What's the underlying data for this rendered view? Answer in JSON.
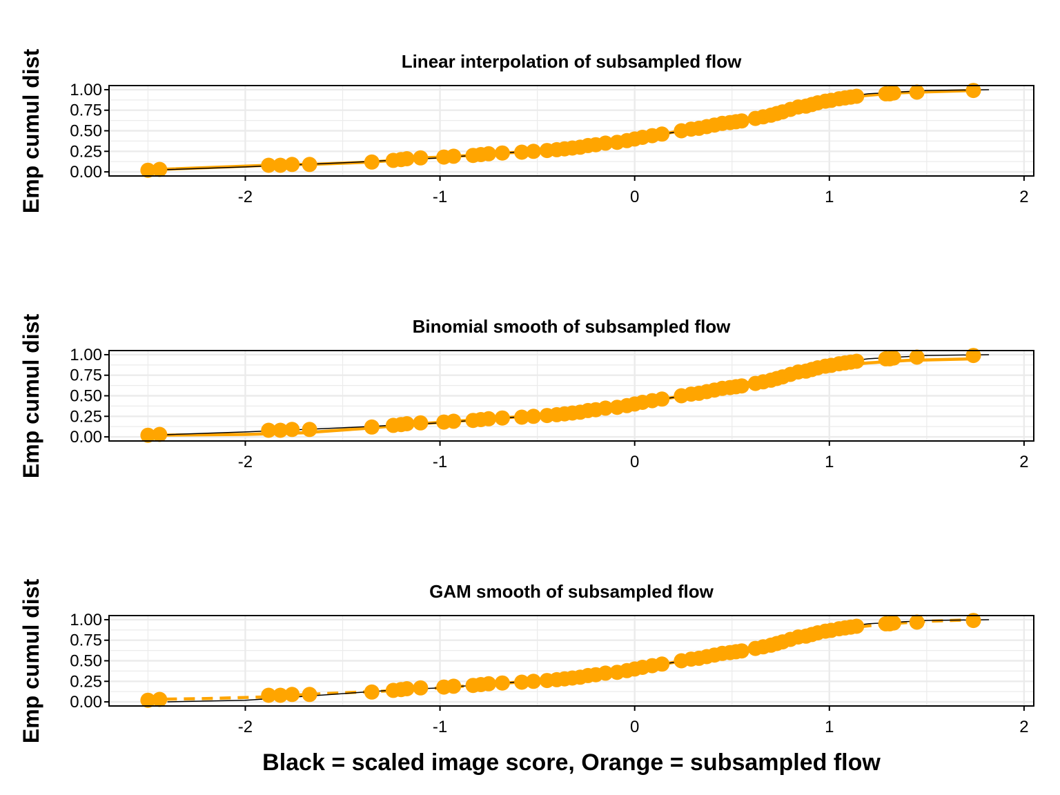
{
  "figure": {
    "x_label": "Black = scaled image score, Orange = subsampled flow",
    "y_label": "Emp cumul dist"
  },
  "colors": {
    "orange": "#FFA500",
    "black": "#000000",
    "grid": "#EBEBEB"
  },
  "chart_data": [
    {
      "type": "line",
      "title": "Linear interpolation of subsampled flow",
      "ylabel": "Emp cumul dist",
      "xlim": [
        -2.7,
        2.05
      ],
      "ylim": [
        -0.05,
        1.05
      ],
      "x_ticks": [
        "-2",
        "-1",
        "0",
        "1",
        "2"
      ],
      "y_ticks": [
        "0.00",
        "0.25",
        "0.50",
        "0.75",
        "1.00"
      ],
      "grid": true,
      "orange_line_style": "solid",
      "series": [
        {
          "role": "black",
          "x": [
            -2.5,
            -2.0,
            -1.5,
            -1.0,
            -0.5,
            -0.1,
            0.0,
            0.2,
            0.4,
            0.6,
            0.8,
            1.0,
            1.2,
            1.5,
            1.82
          ],
          "y": [
            0.02,
            0.06,
            0.11,
            0.17,
            0.26,
            0.36,
            0.41,
            0.48,
            0.56,
            0.66,
            0.79,
            0.89,
            0.95,
            0.99,
            1.0
          ]
        },
        {
          "role": "orange",
          "x": [
            -2.5,
            -2.44,
            -1.88,
            -1.82,
            -1.76,
            -1.67,
            -1.35,
            -1.24,
            -1.2,
            -1.17,
            -1.1,
            -0.98,
            -0.93,
            -0.83,
            -0.79,
            -0.75,
            -0.68,
            -0.58,
            -0.52,
            -0.45,
            -0.4,
            -0.36,
            -0.32,
            -0.28,
            -0.24,
            -0.2,
            -0.15,
            -0.09,
            -0.04,
            0.0,
            0.04,
            0.09,
            0.14,
            0.24,
            0.29,
            0.33,
            0.37,
            0.41,
            0.45,
            0.49,
            0.52,
            0.55,
            0.62,
            0.66,
            0.7,
            0.73,
            0.76,
            0.8,
            0.84,
            0.88,
            0.91,
            0.94,
            0.98,
            1.01,
            1.05,
            1.08,
            1.11,
            1.14,
            1.29,
            1.31,
            1.33,
            1.45,
            1.74
          ],
          "y": [
            0.02,
            0.03,
            0.08,
            0.08,
            0.09,
            0.09,
            0.12,
            0.14,
            0.15,
            0.16,
            0.17,
            0.18,
            0.19,
            0.2,
            0.21,
            0.22,
            0.23,
            0.24,
            0.25,
            0.26,
            0.27,
            0.28,
            0.29,
            0.3,
            0.32,
            0.33,
            0.35,
            0.36,
            0.38,
            0.4,
            0.42,
            0.44,
            0.46,
            0.5,
            0.52,
            0.53,
            0.55,
            0.57,
            0.59,
            0.6,
            0.61,
            0.62,
            0.65,
            0.67,
            0.69,
            0.71,
            0.73,
            0.76,
            0.79,
            0.8,
            0.82,
            0.84,
            0.86,
            0.87,
            0.89,
            0.9,
            0.91,
            0.92,
            0.95,
            0.95,
            0.96,
            0.97,
            0.99
          ]
        }
      ]
    },
    {
      "type": "line",
      "title": "Binomial smooth of subsampled flow",
      "ylabel": "Emp cumul dist",
      "xlim": [
        -2.7,
        2.05
      ],
      "ylim": [
        -0.05,
        1.05
      ],
      "x_ticks": [
        "-2",
        "-1",
        "0",
        "1",
        "2"
      ],
      "y_ticks": [
        "0.00",
        "0.25",
        "0.50",
        "0.75",
        "1.00"
      ],
      "grid": true,
      "orange_line_style": "solid",
      "series": [
        {
          "role": "black",
          "x": [
            -2.5,
            -2.0,
            -1.5,
            -1.0,
            -0.5,
            -0.1,
            0.0,
            0.2,
            0.4,
            0.6,
            0.8,
            1.0,
            1.2,
            1.5,
            1.82
          ],
          "y": [
            0.02,
            0.06,
            0.11,
            0.17,
            0.26,
            0.36,
            0.41,
            0.48,
            0.56,
            0.66,
            0.79,
            0.89,
            0.95,
            0.99,
            1.0
          ]
        },
        {
          "role": "orange_line",
          "x": [
            -2.5,
            -2.0,
            -1.7,
            -1.4,
            -1.1,
            -0.8,
            -0.5,
            -0.2,
            0.0,
            0.2,
            0.4,
            0.6,
            0.8,
            1.0,
            1.2,
            1.4,
            1.74
          ],
          "y": [
            0.02,
            0.03,
            0.05,
            0.1,
            0.16,
            0.21,
            0.26,
            0.34,
            0.41,
            0.48,
            0.57,
            0.67,
            0.76,
            0.86,
            0.9,
            0.93,
            0.95
          ]
        },
        {
          "role": "orange_points",
          "x": [
            -2.5,
            -2.44,
            -1.88,
            -1.82,
            -1.76,
            -1.67,
            -1.35,
            -1.24,
            -1.2,
            -1.17,
            -1.1,
            -0.98,
            -0.93,
            -0.83,
            -0.79,
            -0.75,
            -0.68,
            -0.58,
            -0.52,
            -0.45,
            -0.4,
            -0.36,
            -0.32,
            -0.28,
            -0.24,
            -0.2,
            -0.15,
            -0.09,
            -0.04,
            0.0,
            0.04,
            0.09,
            0.14,
            0.24,
            0.29,
            0.33,
            0.37,
            0.41,
            0.45,
            0.49,
            0.52,
            0.55,
            0.62,
            0.66,
            0.7,
            0.73,
            0.76,
            0.8,
            0.84,
            0.88,
            0.91,
            0.94,
            0.98,
            1.01,
            1.05,
            1.08,
            1.11,
            1.14,
            1.29,
            1.31,
            1.33,
            1.45,
            1.74
          ],
          "y": [
            0.02,
            0.03,
            0.08,
            0.08,
            0.09,
            0.09,
            0.12,
            0.14,
            0.15,
            0.16,
            0.17,
            0.18,
            0.19,
            0.2,
            0.21,
            0.22,
            0.23,
            0.24,
            0.25,
            0.26,
            0.27,
            0.28,
            0.29,
            0.3,
            0.32,
            0.33,
            0.35,
            0.36,
            0.38,
            0.4,
            0.42,
            0.44,
            0.46,
            0.5,
            0.52,
            0.53,
            0.55,
            0.57,
            0.59,
            0.6,
            0.61,
            0.62,
            0.65,
            0.67,
            0.69,
            0.71,
            0.73,
            0.76,
            0.79,
            0.8,
            0.82,
            0.84,
            0.86,
            0.87,
            0.89,
            0.9,
            0.91,
            0.92,
            0.95,
            0.95,
            0.96,
            0.97,
            0.99
          ]
        }
      ]
    },
    {
      "type": "line",
      "title": "GAM smooth of subsampled flow",
      "ylabel": "Emp cumul dist",
      "xlim": [
        -2.7,
        2.05
      ],
      "ylim": [
        -0.05,
        1.05
      ],
      "x_ticks": [
        "-2",
        "-1",
        "0",
        "1",
        "2"
      ],
      "y_ticks": [
        "0.00",
        "0.25",
        "0.50",
        "0.75",
        "1.00"
      ],
      "grid": true,
      "orange_line_style": "dashed",
      "series": [
        {
          "role": "black",
          "x": [
            -2.4,
            -2.0,
            -1.8,
            -1.5,
            -1.2,
            -1.0,
            -0.5,
            -0.1,
            0.0,
            0.2,
            0.4,
            0.6,
            0.8,
            1.0,
            1.2,
            1.5,
            1.82
          ],
          "y": [
            0.0,
            0.02,
            0.05,
            0.1,
            0.15,
            0.17,
            0.26,
            0.36,
            0.41,
            0.48,
            0.56,
            0.66,
            0.79,
            0.89,
            0.95,
            0.99,
            1.0
          ]
        },
        {
          "role": "orange_line",
          "x": [
            -2.5,
            -2.2,
            -1.9,
            -1.6,
            -1.3,
            -1.0,
            -0.7,
            -0.4,
            -0.1,
            0.1,
            0.3,
            0.5,
            0.7,
            0.9,
            1.1,
            1.3,
            1.5,
            1.74
          ],
          "y": [
            0.03,
            0.04,
            0.06,
            0.1,
            0.13,
            0.17,
            0.22,
            0.28,
            0.37,
            0.44,
            0.52,
            0.61,
            0.71,
            0.82,
            0.9,
            0.95,
            0.98,
            1.0
          ]
        },
        {
          "role": "orange_points",
          "x": [
            -2.5,
            -2.44,
            -1.88,
            -1.82,
            -1.76,
            -1.67,
            -1.35,
            -1.24,
            -1.2,
            -1.17,
            -1.1,
            -0.98,
            -0.93,
            -0.83,
            -0.79,
            -0.75,
            -0.68,
            -0.58,
            -0.52,
            -0.45,
            -0.4,
            -0.36,
            -0.32,
            -0.28,
            -0.24,
            -0.2,
            -0.15,
            -0.09,
            -0.04,
            0.0,
            0.04,
            0.09,
            0.14,
            0.24,
            0.29,
            0.33,
            0.37,
            0.41,
            0.45,
            0.49,
            0.52,
            0.55,
            0.62,
            0.66,
            0.7,
            0.73,
            0.76,
            0.8,
            0.84,
            0.88,
            0.91,
            0.94,
            0.98,
            1.01,
            1.05,
            1.08,
            1.11,
            1.14,
            1.29,
            1.31,
            1.33,
            1.45,
            1.74
          ],
          "y": [
            0.02,
            0.03,
            0.08,
            0.08,
            0.09,
            0.09,
            0.12,
            0.14,
            0.15,
            0.16,
            0.17,
            0.18,
            0.19,
            0.2,
            0.21,
            0.22,
            0.23,
            0.24,
            0.25,
            0.26,
            0.27,
            0.28,
            0.29,
            0.3,
            0.32,
            0.33,
            0.35,
            0.36,
            0.38,
            0.4,
            0.42,
            0.44,
            0.46,
            0.5,
            0.52,
            0.53,
            0.55,
            0.57,
            0.59,
            0.6,
            0.61,
            0.62,
            0.65,
            0.67,
            0.69,
            0.71,
            0.73,
            0.76,
            0.79,
            0.8,
            0.82,
            0.84,
            0.86,
            0.87,
            0.89,
            0.9,
            0.91,
            0.92,
            0.95,
            0.95,
            0.96,
            0.97,
            0.99
          ]
        }
      ]
    }
  ]
}
